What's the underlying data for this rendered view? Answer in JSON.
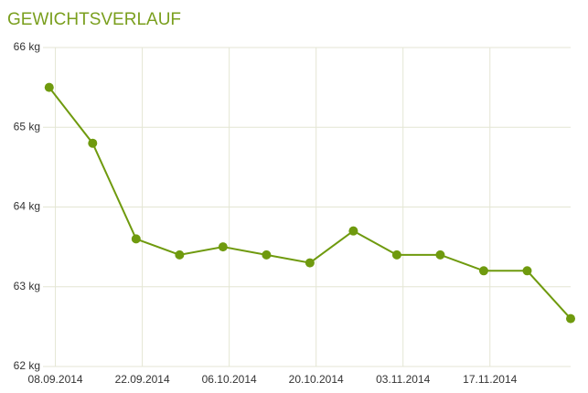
{
  "chart_data": {
    "type": "line",
    "title": "GEWICHTSVERLAUF",
    "x": [
      "2014-09-07",
      "2014-09-14",
      "2014-09-21",
      "2014-09-28",
      "2014-10-05",
      "2014-10-12",
      "2014-10-19",
      "2014-10-26",
      "2014-11-02",
      "2014-11-09",
      "2014-11-16",
      "2014-11-23",
      "2014-11-30"
    ],
    "values": [
      65.5,
      64.8,
      63.6,
      63.4,
      63.5,
      63.4,
      63.3,
      63.7,
      63.4,
      63.4,
      63.2,
      63.2,
      62.6
    ],
    "color": "#6f9a0e",
    "xlim": [
      "2014-09-06",
      "2014-11-30"
    ],
    "xticks": [
      {
        "value": "2014-09-08",
        "label": "08.09.2014"
      },
      {
        "value": "2014-09-22",
        "label": "22.09.2014"
      },
      {
        "value": "2014-10-06",
        "label": "06.10.2014"
      },
      {
        "value": "2014-10-20",
        "label": "20.10.2014"
      },
      {
        "value": "2014-11-03",
        "label": "03.11.2014"
      },
      {
        "value": "2014-11-17",
        "label": "17.11.2014"
      }
    ],
    "ylim": [
      62,
      66
    ],
    "yticks": [
      {
        "value": 62,
        "label": "62 kg"
      },
      {
        "value": 63,
        "label": "63 kg"
      },
      {
        "value": 64,
        "label": "64 kg"
      },
      {
        "value": 65,
        "label": "65 kg"
      },
      {
        "value": 66,
        "label": "66 kg"
      }
    ],
    "grid": true
  }
}
